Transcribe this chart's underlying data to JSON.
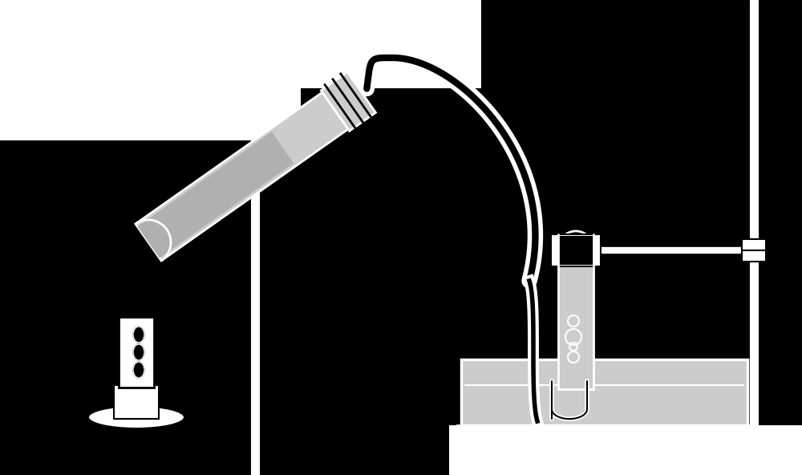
{
  "bg_color": "#000000",
  "white": "#ffffff",
  "gray": "#b0b0b0",
  "light_gray": "#cccccc",
  "fig_w": 10.0,
  "fig_h": 5.92,
  "dpi": 100
}
